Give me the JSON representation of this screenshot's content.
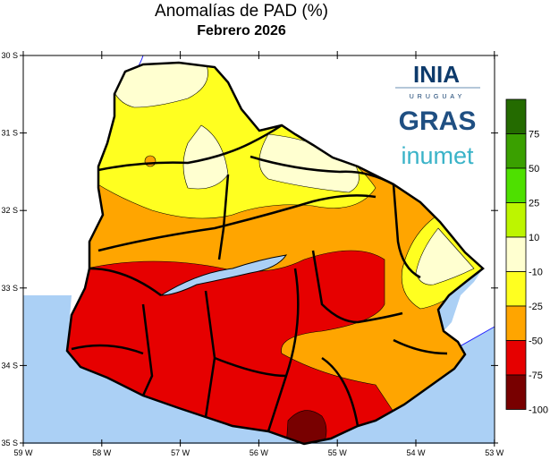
{
  "title": "Anomalías de PAD (%)",
  "subtitle": "Febrero 2026",
  "axes": {
    "lat_ticks": [
      "30 S",
      "31 S",
      "32 S",
      "33 S",
      "34 S",
      "35 S"
    ],
    "lon_ticks": [
      "59 W",
      "58 W",
      "57 W",
      "56 W",
      "55 W",
      "54 W",
      "53 W"
    ]
  },
  "logos": {
    "inia": "INIA",
    "inia_sub": "URUGUAY",
    "gras": "GRAS",
    "inumet": "inumet"
  },
  "legend": {
    "labels": [
      "75",
      "50",
      "25",
      "10",
      "-10",
      "-25",
      "-50",
      "-75",
      "-100"
    ],
    "colors": [
      "#246b00",
      "#3aa000",
      "#4ee000",
      "#bdf500",
      "#ffffd0",
      "#ffff20",
      "#ffa500",
      "#e60000",
      "#780000"
    ]
  },
  "colors": {
    "water": "#abd0f5",
    "border": "#000000"
  }
}
